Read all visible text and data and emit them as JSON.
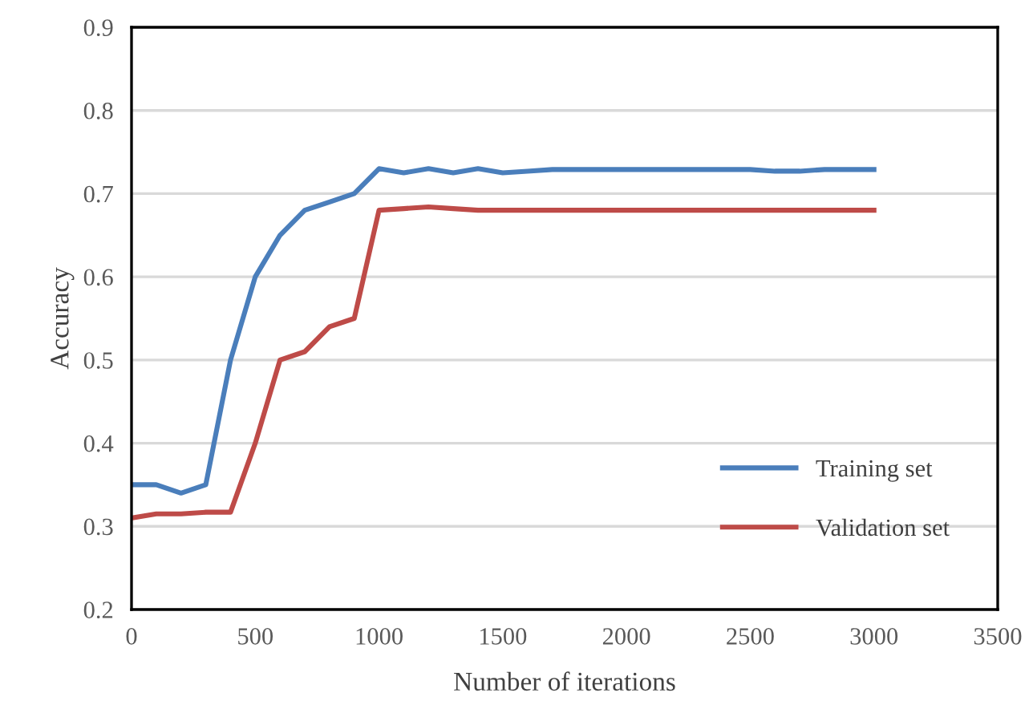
{
  "chart_data": {
    "type": "line",
    "xlabel": "Number of iterations",
    "ylabel": "Accuracy",
    "x": [
      0,
      100,
      200,
      300,
      400,
      500,
      600,
      700,
      800,
      900,
      1000,
      1100,
      1200,
      1300,
      1400,
      1500,
      1600,
      1700,
      1800,
      1900,
      2000,
      2100,
      2200,
      2300,
      2400,
      2500,
      2600,
      2700,
      2800,
      2900,
      3000
    ],
    "series": [
      {
        "name": "Training set",
        "color": "#4a7ebb",
        "values": [
          0.35,
          0.35,
          0.34,
          0.35,
          0.5,
          0.6,
          0.65,
          0.68,
          0.69,
          0.7,
          0.73,
          0.725,
          0.73,
          0.725,
          0.73,
          0.725,
          0.727,
          0.729,
          0.729,
          0.729,
          0.729,
          0.729,
          0.729,
          0.729,
          0.729,
          0.729,
          0.727,
          0.727,
          0.729,
          0.729,
          0.729
        ]
      },
      {
        "name": "Validation set",
        "color": "#be4b48",
        "values": [
          0.31,
          0.315,
          0.315,
          0.317,
          0.317,
          0.4,
          0.5,
          0.51,
          0.54,
          0.55,
          0.68,
          0.682,
          0.684,
          0.682,
          0.68,
          0.68,
          0.68,
          0.68,
          0.68,
          0.68,
          0.68,
          0.68,
          0.68,
          0.68,
          0.68,
          0.68,
          0.68,
          0.68,
          0.68,
          0.68,
          0.68
        ]
      }
    ],
    "xlim": [
      0,
      3500
    ],
    "xticks": [
      0,
      500,
      1000,
      1500,
      2000,
      2500,
      3000,
      3500
    ],
    "ylim": [
      0.2,
      0.9
    ],
    "yticks": [
      0.2,
      0.3,
      0.4,
      0.5,
      0.6,
      0.7,
      0.8,
      0.9
    ],
    "grid": "y",
    "legend": "bottom right",
    "marker": "none",
    "line_style": "solid"
  }
}
